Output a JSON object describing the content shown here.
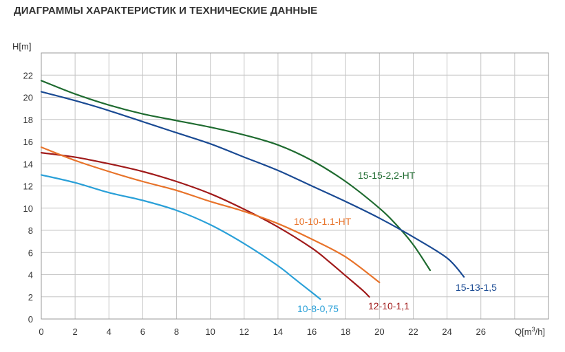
{
  "page": {
    "title": "ДИАГРАММЫ ХАРАКТЕРИСТИК И ТЕХНИЧЕСКИЕ ДАННЫЕ"
  },
  "chart_data": {
    "type": "line",
    "title": "",
    "ylabel": "H[m]",
    "xlabel_main": "Q[m",
    "xlabel_sup": "3",
    "xlabel_end": "/h]",
    "xlim": [
      0,
      30
    ],
    "ylim": [
      0,
      24
    ],
    "grid": true,
    "x_ticks": [
      0,
      2,
      4,
      6,
      8,
      10,
      12,
      14,
      16,
      18,
      20,
      22,
      24,
      26
    ],
    "y_ticks": [
      0,
      2,
      4,
      6,
      8,
      10,
      12,
      14,
      16,
      18,
      20,
      22
    ],
    "series": [
      {
        "name": "15-15-2,2-HT",
        "color": "#1f6b30",
        "points": [
          [
            0,
            21.5
          ],
          [
            2,
            20.3
          ],
          [
            4,
            19.3
          ],
          [
            6,
            18.5
          ],
          [
            8,
            17.9
          ],
          [
            10,
            17.3
          ],
          [
            12,
            16.6
          ],
          [
            14,
            15.7
          ],
          [
            16,
            14.3
          ],
          [
            18,
            12.4
          ],
          [
            20,
            10.0
          ],
          [
            21,
            8.5
          ],
          [
            22,
            6.7
          ],
          [
            23,
            4.4
          ]
        ]
      },
      {
        "name": "15-13-1,5",
        "color": "#1a4a93",
        "points": [
          [
            0,
            20.5
          ],
          [
            2,
            19.7
          ],
          [
            4,
            18.8
          ],
          [
            6,
            17.8
          ],
          [
            8,
            16.8
          ],
          [
            10,
            15.8
          ],
          [
            12,
            14.6
          ],
          [
            14,
            13.4
          ],
          [
            16,
            12.0
          ],
          [
            18,
            10.6
          ],
          [
            20,
            9.1
          ],
          [
            22,
            7.4
          ],
          [
            24,
            5.5
          ],
          [
            25,
            3.8
          ]
        ]
      },
      {
        "name": "12-10-1,1",
        "color": "#a01a1a",
        "points": [
          [
            0,
            15.0
          ],
          [
            2,
            14.6
          ],
          [
            4,
            14.0
          ],
          [
            6,
            13.3
          ],
          [
            8,
            12.4
          ],
          [
            10,
            11.3
          ],
          [
            12,
            9.9
          ],
          [
            14,
            8.3
          ],
          [
            16,
            6.4
          ],
          [
            17,
            5.2
          ],
          [
            18,
            3.9
          ],
          [
            19,
            2.6
          ],
          [
            19.4,
            2.0
          ]
        ]
      },
      {
        "name": "10-10-1.1-HT",
        "color": "#e8732a",
        "points": [
          [
            0,
            15.5
          ],
          [
            2,
            14.3
          ],
          [
            4,
            13.3
          ],
          [
            6,
            12.4
          ],
          [
            8,
            11.6
          ],
          [
            10,
            10.6
          ],
          [
            12,
            9.7
          ],
          [
            14,
            8.6
          ],
          [
            16,
            7.2
          ],
          [
            18,
            5.6
          ],
          [
            20,
            3.3
          ]
        ]
      },
      {
        "name": "10-8-0,75",
        "color": "#2aa0d8",
        "points": [
          [
            0,
            13.0
          ],
          [
            2,
            12.3
          ],
          [
            4,
            11.4
          ],
          [
            6,
            10.7
          ],
          [
            8,
            9.8
          ],
          [
            10,
            8.5
          ],
          [
            12,
            6.8
          ],
          [
            14,
            4.8
          ],
          [
            15,
            3.6
          ],
          [
            16,
            2.4
          ],
          [
            16.5,
            1.8
          ]
        ]
      }
    ]
  }
}
